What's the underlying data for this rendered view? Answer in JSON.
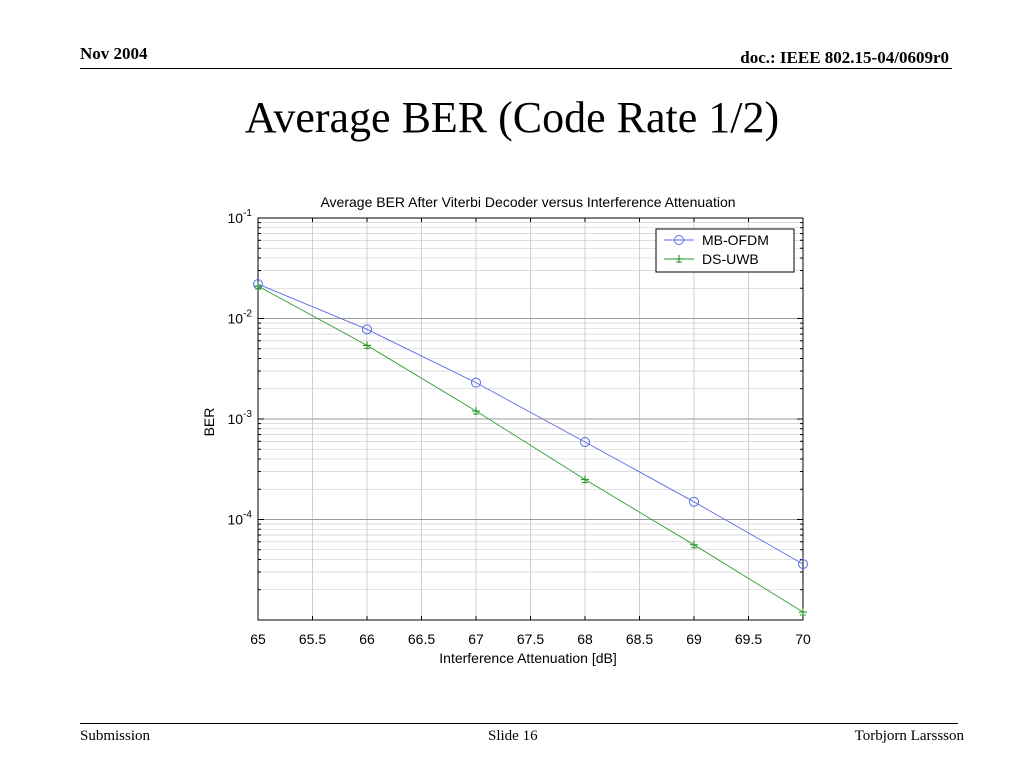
{
  "header": {
    "date": "Nov 2004",
    "doc_id": "doc.: IEEE 802.15-04/0609r0"
  },
  "slide": {
    "title": "Average BER (Code Rate 1/2)"
  },
  "footer": {
    "left": "Submission",
    "center": "Slide 16",
    "right": "Torbjorn Larssson"
  },
  "chart_data": {
    "type": "line",
    "title": "Average BER After Viterbi Decoder versus Interference Attenuation",
    "xlabel": "Interference Attenuation [dB]",
    "ylabel": "BER",
    "xlim": [
      65,
      70
    ],
    "ylim": [
      1e-05,
      0.1
    ],
    "yscale": "log",
    "grid": true,
    "legend": "top-right",
    "x_ticks": [
      "65",
      "65.5",
      "66",
      "66.5",
      "67",
      "67.5",
      "68",
      "68.5",
      "69",
      "69.5",
      "70"
    ],
    "y_ticks": [
      {
        "base": "10",
        "exp": "-1"
      },
      {
        "base": "10",
        "exp": "-2"
      },
      {
        "base": "10",
        "exp": "-3"
      },
      {
        "base": "10",
        "exp": "-4"
      }
    ],
    "series": [
      {
        "name": "MB-OFDM",
        "color": "#5b6ee6",
        "marker": "circle",
        "x": [
          65,
          66,
          67,
          68,
          69,
          70
        ],
        "y": [
          0.022,
          0.0078,
          0.0023,
          0.00059,
          0.00015,
          3.6e-05
        ]
      },
      {
        "name": "DS-UWB",
        "color": "#2f9a2f",
        "marker": "plus",
        "x": [
          65,
          66,
          67,
          68,
          69,
          70
        ],
        "y": [
          0.021,
          0.0054,
          0.0012,
          0.00025,
          5.6e-05,
          1.2e-05
        ]
      }
    ]
  }
}
